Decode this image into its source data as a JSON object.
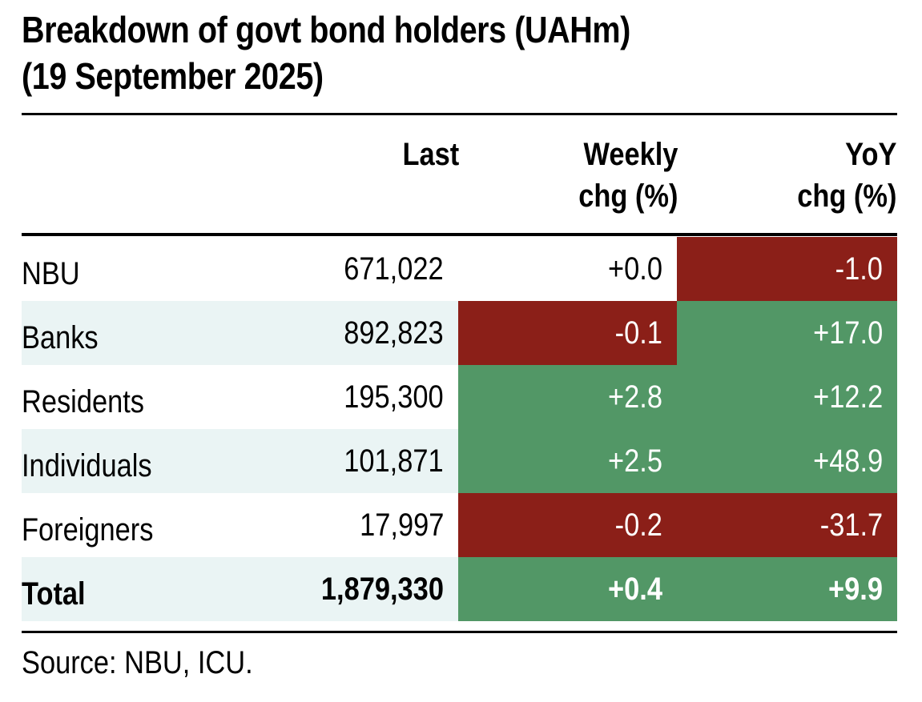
{
  "title": {
    "line1": "Breakdown of govt bond holders (UAHm)",
    "line2": "(19 September 2025)"
  },
  "headers": {
    "last": "Last",
    "weekly_line1": "Weekly",
    "weekly_line2": "chg (%)",
    "yoy_line1": "YoY",
    "yoy_line2": "chg (%)"
  },
  "colors": {
    "positive": "#529766",
    "negative": "#8b1f18",
    "row_shade": "#eaf4f4",
    "neutral": "#ffffff"
  },
  "rows": [
    {
      "name": "NBU",
      "last": "671,022",
      "weekly": "+0.0",
      "yoy": "-1.0",
      "weekly_tone": "neutral",
      "yoy_tone": "negative",
      "shaded": false
    },
    {
      "name": "Banks",
      "last": "892,823",
      "weekly": "-0.1",
      "yoy": "+17.0",
      "weekly_tone": "negative",
      "yoy_tone": "positive",
      "shaded": true
    },
    {
      "name": "Residents",
      "last": "195,300",
      "weekly": "+2.8",
      "yoy": "+12.2",
      "weekly_tone": "positive",
      "yoy_tone": "positive",
      "shaded": false
    },
    {
      "name": "Individuals",
      "last": "101,871",
      "weekly": "+2.5",
      "yoy": "+48.9",
      "weekly_tone": "positive",
      "yoy_tone": "positive",
      "shaded": true
    },
    {
      "name": "Foreigners",
      "last": "17,997",
      "weekly": "-0.2",
      "yoy": "-31.7",
      "weekly_tone": "negative",
      "yoy_tone": "negative",
      "shaded": false
    },
    {
      "name": "Total",
      "last": "1,879,330",
      "weekly": "+0.4",
      "yoy": "+9.9",
      "weekly_tone": "positive",
      "yoy_tone": "positive",
      "shaded": true,
      "bold": true
    }
  ],
  "source": "Source: NBU, ICU.",
  "chart_data": {
    "type": "table",
    "title": "Breakdown of govt bond holders (UAHm) (19 September 2025)",
    "columns": [
      "",
      "Last",
      "Weekly chg (%)",
      "YoY chg (%)"
    ],
    "rows": [
      [
        "NBU",
        671022,
        0.0,
        -1.0
      ],
      [
        "Banks",
        892823,
        -0.1,
        17.0
      ],
      [
        "Residents",
        195300,
        2.8,
        12.2
      ],
      [
        "Individuals",
        101871,
        2.5,
        48.9
      ],
      [
        "Foreigners",
        17997,
        -0.2,
        -31.7
      ],
      [
        "Total",
        1879330,
        0.4,
        9.9
      ]
    ]
  }
}
